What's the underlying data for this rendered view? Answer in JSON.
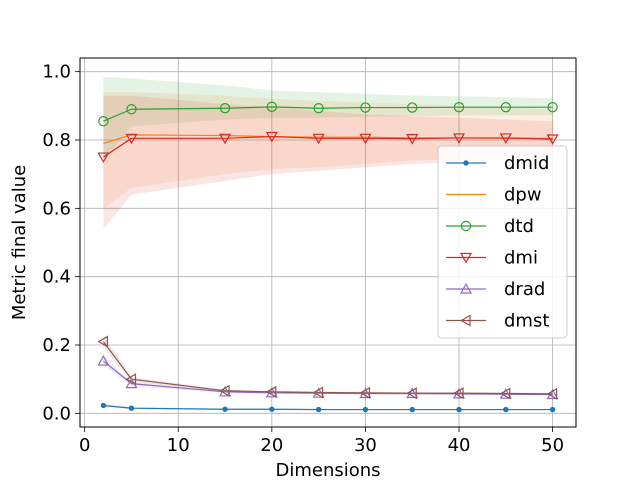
{
  "chart_data": {
    "type": "line",
    "title": "",
    "xlabel": "Dimensions",
    "ylabel": "Metric final value",
    "xlim": [
      -0.5,
      52.5
    ],
    "ylim": [
      -0.04,
      1.04
    ],
    "xticks": [
      0,
      10,
      20,
      30,
      40,
      50
    ],
    "yticks": [
      0.0,
      0.2,
      0.4,
      0.6,
      0.8,
      1.0
    ],
    "xtick_labels": [
      "0",
      "10",
      "20",
      "30",
      "40",
      "50"
    ],
    "ytick_labels": [
      "0.0",
      "0.2",
      "0.4",
      "0.6",
      "0.8",
      "1.0"
    ],
    "grid": true,
    "legend_position": "center-right",
    "x": [
      2,
      5,
      15,
      20,
      25,
      30,
      35,
      40,
      45,
      50
    ],
    "series": [
      {
        "name": "dmid",
        "color": "#1f77b4",
        "marker": "circle-small",
        "values": [
          0.023,
          0.015,
          0.012,
          0.012,
          0.011,
          0.011,
          0.011,
          0.011,
          0.011,
          0.011
        ],
        "band_lower": [
          0.019,
          0.012,
          0.01,
          0.01,
          0.009,
          0.009,
          0.009,
          0.009,
          0.009,
          0.009
        ],
        "band_upper": [
          0.027,
          0.018,
          0.014,
          0.014,
          0.013,
          0.013,
          0.013,
          0.013,
          0.013,
          0.013
        ]
      },
      {
        "name": "dpw",
        "color": "#ff7f0e",
        "marker": "none",
        "values": [
          0.79,
          0.815,
          0.813,
          0.81,
          0.808,
          0.808,
          0.806,
          0.806,
          0.805,
          0.805
        ],
        "band_lower": [
          0.6,
          0.66,
          0.7,
          0.715,
          0.72,
          0.73,
          0.74,
          0.745,
          0.75,
          0.755
        ],
        "band_upper": [
          0.94,
          0.94,
          0.93,
          0.92,
          0.915,
          0.91,
          0.905,
          0.9,
          0.895,
          0.89
        ]
      },
      {
        "name": "dtd",
        "color": "#2ca02c",
        "marker": "circle-open",
        "values": [
          0.855,
          0.89,
          0.893,
          0.897,
          0.893,
          0.895,
          0.895,
          0.896,
          0.896,
          0.896
        ],
        "band_lower": [
          0.74,
          0.84,
          0.86,
          0.865,
          0.865,
          0.868,
          0.87,
          0.872,
          0.872,
          0.872
        ],
        "band_upper": [
          0.985,
          0.98,
          0.96,
          0.945,
          0.94,
          0.935,
          0.93,
          0.928,
          0.925,
          0.922
        ]
      },
      {
        "name": "dmi",
        "color": "#d62728",
        "marker": "triangle-down-open",
        "values": [
          0.75,
          0.805,
          0.805,
          0.81,
          0.805,
          0.805,
          0.804,
          0.806,
          0.806,
          0.803
        ],
        "band_lower": [
          0.54,
          0.64,
          0.68,
          0.7,
          0.71,
          0.72,
          0.73,
          0.735,
          0.74,
          0.745
        ],
        "band_upper": [
          0.93,
          0.93,
          0.905,
          0.895,
          0.885,
          0.875,
          0.87,
          0.865,
          0.86,
          0.855
        ]
      },
      {
        "name": "drad",
        "color": "#9467bd",
        "marker": "triangle-up-open",
        "values": [
          0.153,
          0.087,
          0.063,
          0.06,
          0.059,
          0.058,
          0.058,
          0.057,
          0.056,
          0.055
        ],
        "band_lower": [
          0.14,
          0.08,
          0.06,
          0.057,
          0.056,
          0.055,
          0.055,
          0.054,
          0.053,
          0.052
        ],
        "band_upper": [
          0.166,
          0.094,
          0.066,
          0.063,
          0.062,
          0.061,
          0.061,
          0.06,
          0.059,
          0.058
        ]
      },
      {
        "name": "dmst",
        "color": "#8c564b",
        "marker": "triangle-left-open",
        "values": [
          0.21,
          0.1,
          0.066,
          0.063,
          0.061,
          0.06,
          0.059,
          0.059,
          0.058,
          0.057
        ],
        "band_lower": [
          0.19,
          0.093,
          0.063,
          0.06,
          0.058,
          0.057,
          0.056,
          0.056,
          0.055,
          0.054
        ],
        "band_upper": [
          0.23,
          0.107,
          0.069,
          0.066,
          0.064,
          0.063,
          0.062,
          0.062,
          0.061,
          0.06
        ]
      }
    ]
  }
}
